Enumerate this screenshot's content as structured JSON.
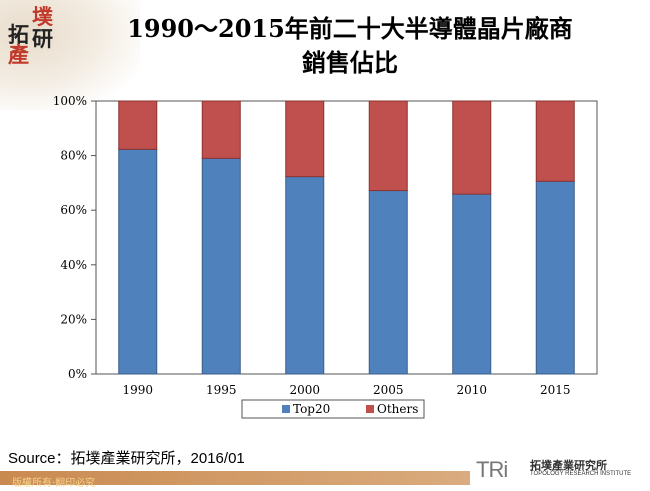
{
  "logo": {
    "chars": [
      "拓",
      "墣",
      "產",
      "研"
    ]
  },
  "title_line1": "1990～2015年前二十大半導體晶片廠商",
  "title_line2": "銷售佔比",
  "chart_data": {
    "type": "bar",
    "stacked": true,
    "percent_stacked": true,
    "categories": [
      "1990",
      "1995",
      "2000",
      "2005",
      "2010",
      "2015"
    ],
    "series": [
      {
        "name": "Top20",
        "values": [
          82.3,
          79.0,
          72.3,
          67.2,
          65.9,
          70.6
        ],
        "color": "#4f81bd"
      },
      {
        "name": "Others",
        "values": [
          17.7,
          21.0,
          27.7,
          32.8,
          34.1,
          29.4
        ],
        "color": "#c0504d"
      }
    ],
    "ylim": [
      0,
      100
    ],
    "yticks": [
      "0%",
      "20%",
      "40%",
      "60%",
      "80%",
      "100%"
    ],
    "grid": false,
    "legend": "bottom"
  },
  "source": "Source：拓墣產業研究所，2016/01",
  "footer": "版權所有‧翻印必究",
  "brand": {
    "mark": "TRi",
    "name_zh": "拓墣產業研究所",
    "name_en": "TOPOLOGY RESEARCH INSTITUTE"
  }
}
